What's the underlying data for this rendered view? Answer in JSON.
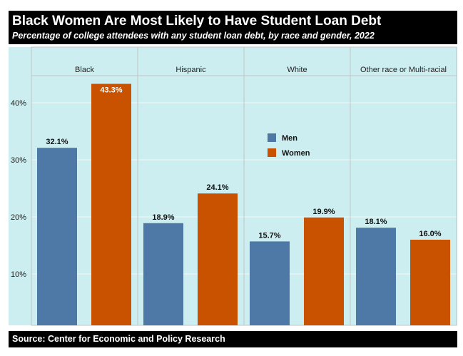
{
  "chart_data": {
    "type": "bar",
    "title": "Black Women Are Most Likely to Have Student Loan Debt",
    "subtitle": "Percentage of college attendees with any student loan debt, by race and gender, 2022",
    "categories": [
      "Black",
      "Hispanic",
      "White",
      "Other race or Multi-racial"
    ],
    "series": [
      {
        "name": "Men",
        "color": "#4e79a7",
        "values": [
          32.1,
          18.9,
          15.7,
          18.1
        ]
      },
      {
        "name": "Women",
        "color": "#c85200",
        "values": [
          43.3,
          24.1,
          19.9,
          16.0
        ]
      }
    ],
    "value_labels": [
      [
        "32.1%",
        "18.9%",
        "15.7%",
        "18.1%"
      ],
      [
        "43.3%",
        "24.1%",
        "19.9%",
        "16.0%"
      ]
    ],
    "yticks": [
      10,
      20,
      30,
      40
    ],
    "ytick_labels": [
      "10%",
      "20%",
      "30%",
      "40%"
    ],
    "ylim": [
      1,
      49
    ],
    "grid": true,
    "legend_position": "center",
    "background": "#cdeef0",
    "source": "Source: Center for Economic and Policy Research"
  }
}
